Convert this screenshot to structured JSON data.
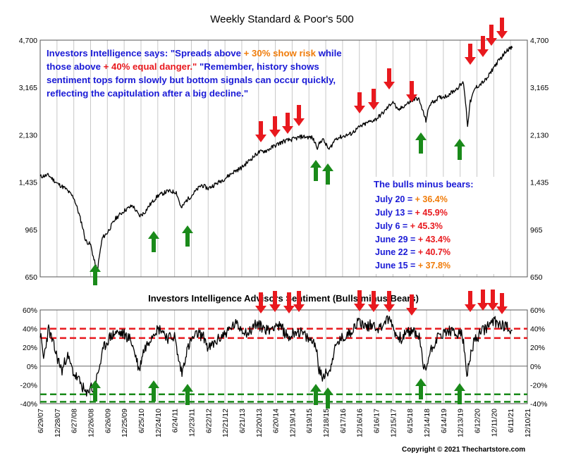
{
  "chart_data": [
    {
      "type": "line",
      "title": "Weekly Standard & Poor's 500",
      "ylabel": "",
      "xlabel": "",
      "y_scale": "log",
      "ylim": [
        650,
        4700
      ],
      "y_ticks": [
        "650",
        "965",
        "1,435",
        "2,130",
        "3,165",
        "4,700"
      ],
      "y_tick_values": [
        650,
        965,
        1435,
        2130,
        3165,
        4700
      ],
      "grid": "vertical",
      "x_tick_labels": [
        "6/29/07",
        "12/28/07",
        "6/27/08",
        "12/26/08",
        "6/26/09",
        "12/25/09",
        "6/25/10",
        "12/24/10",
        "6/24/11",
        "12/23/11",
        "6/22/12",
        "12/21/12",
        "6/21/13",
        "12/20/13",
        "6/20/14",
        "12/19/14",
        "6/19/15",
        "12/18/15",
        "6/17/16",
        "12/16/16",
        "6/16/17",
        "12/15/17",
        "6/15/18",
        "12/14/18",
        "6/14/19",
        "12/13/19",
        "6/12/20",
        "12/11/20",
        "6/11/21",
        "12/10/21"
      ],
      "series": [
        {
          "x": [
            2007.5,
            2007.75,
            2008.0,
            2008.25,
            2008.5,
            2008.75,
            2008.85,
            2009.0,
            2009.1,
            2009.2,
            2009.35,
            2009.5,
            2009.75,
            2010.0,
            2010.25,
            2010.45,
            2010.6,
            2010.75,
            2011.0,
            2011.3,
            2011.55,
            2011.7,
            2011.85,
            2012.0,
            2012.3,
            2012.5,
            2012.8,
            2013.0,
            2013.25,
            2013.5,
            2013.75,
            2014.0,
            2014.25,
            2014.5,
            2014.75,
            2015.0,
            2015.3,
            2015.6,
            2015.75,
            2015.9,
            2016.1,
            2016.3,
            2016.5,
            2016.75,
            2017.0,
            2017.25,
            2017.5,
            2017.75,
            2018.0,
            2018.15,
            2018.3,
            2018.6,
            2018.75,
            2018.98,
            2019.1,
            2019.35,
            2019.6,
            2019.85,
            2020.1,
            2020.22,
            2020.3,
            2020.45,
            2020.6,
            2020.8,
            2021.0,
            2021.25,
            2021.4,
            2021.55
          ],
          "values": [
            1503,
            1520,
            1420,
            1360,
            1260,
            1000,
            880,
            850,
            750,
            680,
            900,
            940,
            1060,
            1130,
            1180,
            1080,
            1110,
            1180,
            1280,
            1330,
            1320,
            1150,
            1230,
            1280,
            1400,
            1360,
            1430,
            1480,
            1560,
            1620,
            1730,
            1840,
            1870,
            1950,
            2020,
            2050,
            2100,
            2080,
            1920,
            2060,
            1880,
            2070,
            2100,
            2150,
            2270,
            2360,
            2430,
            2590,
            2820,
            2600,
            2700,
            2850,
            2900,
            2400,
            2750,
            2900,
            2950,
            3100,
            3300,
            2300,
            2800,
            3150,
            3250,
            3400,
            3750,
            4100,
            4350,
            4400
          ]
        }
      ]
    },
    {
      "type": "line",
      "title": "Investors Intelligence Advisors Sentiment (Bulls minus Bears)",
      "ylabel": "",
      "xlabel": "",
      "ylim": [
        -40,
        60
      ],
      "y_ticks": [
        "-40%",
        "-20%",
        "0%",
        "20%",
        "40%",
        "60%"
      ],
      "y_tick_values": [
        -40,
        -20,
        0,
        20,
        40,
        60
      ],
      "reference_lines": [
        40,
        30,
        -30,
        -38
      ],
      "series": [
        {
          "x": [
            2007.5,
            2007.6,
            2007.75,
            2007.85,
            2008.0,
            2008.15,
            2008.3,
            2008.5,
            2008.65,
            2008.8,
            2008.88,
            2009.0,
            2009.1,
            2009.2,
            2009.3,
            2009.4,
            2009.55,
            2009.75,
            2010.0,
            2010.2,
            2010.35,
            2010.45,
            2010.55,
            2010.7,
            2010.9,
            2011.1,
            2011.3,
            2011.5,
            2011.6,
            2011.72,
            2011.85,
            2012.0,
            2012.2,
            2012.4,
            2012.5,
            2012.7,
            2012.9,
            2013.1,
            2013.3,
            2013.5,
            2013.7,
            2013.9,
            2014.1,
            2014.3,
            2014.5,
            2014.7,
            2014.9,
            2015.1,
            2015.3,
            2015.5,
            2015.7,
            2015.8,
            2015.9,
            2016.0,
            2016.1,
            2016.2,
            2016.35,
            2016.5,
            2016.7,
            2016.9,
            2017.0,
            2017.2,
            2017.4,
            2017.6,
            2017.8,
            2017.95,
            2018.1,
            2018.25,
            2018.4,
            2018.6,
            2018.8,
            2018.9,
            2018.98,
            2019.1,
            2019.3,
            2019.5,
            2019.7,
            2019.9,
            2020.0,
            2020.12,
            2020.2,
            2020.3,
            2020.4,
            2020.6,
            2020.8,
            2021.0,
            2021.2,
            2021.4,
            2021.55
          ],
          "values": [
            35,
            8,
            40,
            28,
            10,
            -5,
            12,
            -8,
            -15,
            -25,
            -32,
            -20,
            -28,
            -10,
            5,
            20,
            30,
            36,
            34,
            28,
            10,
            -5,
            14,
            25,
            38,
            40,
            30,
            32,
            10,
            -8,
            15,
            28,
            35,
            30,
            18,
            25,
            32,
            38,
            45,
            40,
            35,
            45,
            42,
            38,
            45,
            40,
            30,
            38,
            35,
            28,
            25,
            -5,
            -12,
            -5,
            -8,
            10,
            25,
            30,
            35,
            45,
            48,
            42,
            45,
            40,
            50,
            48,
            32,
            30,
            35,
            38,
            30,
            -2,
            -3,
            15,
            30,
            35,
            38,
            32,
            40,
            20,
            -12,
            10,
            25,
            35,
            42,
            48,
            45,
            42,
            38
          ]
        }
      ]
    }
  ],
  "annotation": {
    "p1": "Investors Intelligence says:  \"Spreads above ",
    "p2": "+ 30% show risk",
    "p3": " while those above ",
    "p4": "+ 40% equal danger.\"",
    "p5": "  \"Remember, history shows sentiment tops form slowly but bottom signals can occur quickly, reflecting the capitulation after a big decline.\""
  },
  "bulls_title": "The bulls minus bears:",
  "bulls": [
    {
      "label": "July 20 = ",
      "value": "+ 36.4%",
      "color": "#f07c0a"
    },
    {
      "label": "July 13 = ",
      "value": "+ 45.9%",
      "color": "#e8191e"
    },
    {
      "label": "July 6 = ",
      "value": "+ 45.3%",
      "color": "#e8191e"
    },
    {
      "label": "June 29 = ",
      "value": "+ 43.4%",
      "color": "#e8191e"
    },
    {
      "label": "June 22 = ",
      "value": "+ 40.7%",
      "color": "#e8191e"
    },
    {
      "label": "June 15 = ",
      "value": "+ 37.8%",
      "color": "#f07c0a"
    }
  ],
  "copyright": "Copyright © 2021 Thechartstore.com",
  "colors": {
    "up_arrow": "#1a8a1a",
    "down_arrow": "#e8191e",
    "ref_red": "#e8191e",
    "ref_green": "#1a8a1a",
    "text_blue": "#1a1ad6",
    "orange": "#f07c0a"
  }
}
